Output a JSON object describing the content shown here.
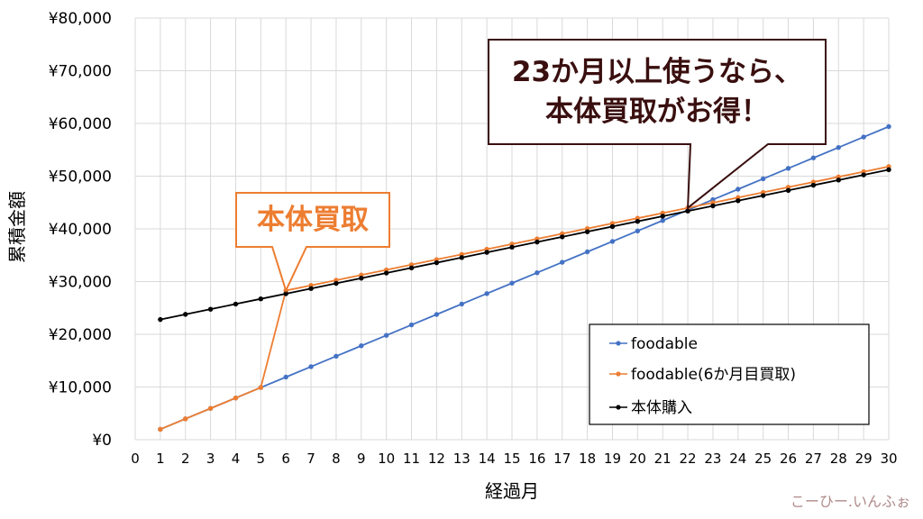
{
  "chart_data": {
    "type": "line",
    "xlabel": "経過月",
    "ylabel": "累積金額",
    "x_ticks": [
      0,
      1,
      2,
      3,
      4,
      5,
      6,
      7,
      8,
      9,
      10,
      11,
      12,
      13,
      14,
      15,
      16,
      17,
      18,
      19,
      20,
      21,
      22,
      23,
      24,
      25,
      26,
      27,
      28,
      29,
      30
    ],
    "xlim": [
      0,
      30
    ],
    "y_ticks": [
      "¥0",
      "¥10,000",
      "¥20,000",
      "¥30,000",
      "¥40,000",
      "¥50,000",
      "¥60,000",
      "¥70,000",
      "¥80,000"
    ],
    "ylim": [
      0,
      80000
    ],
    "grid": true,
    "legend_position": "bottom-right",
    "series": [
      {
        "name": "foodable",
        "color": "#4472c4",
        "x": [
          1,
          2,
          3,
          4,
          5,
          6,
          7,
          8,
          9,
          10,
          11,
          12,
          13,
          14,
          15,
          16,
          17,
          18,
          19,
          20,
          21,
          22,
          23,
          24,
          25,
          26,
          27,
          28,
          29,
          30
        ],
        "values": [
          1980,
          3960,
          5940,
          7920,
          9900,
          11880,
          13860,
          15840,
          17820,
          19800,
          21780,
          23760,
          25740,
          27720,
          29700,
          31680,
          33660,
          35640,
          37620,
          39600,
          41580,
          43560,
          45540,
          47520,
          49500,
          51480,
          53460,
          55440,
          57420,
          59400
        ]
      },
      {
        "name": "foodable(6か月目買取)",
        "color": "#ed7d31",
        "x": [
          1,
          2,
          3,
          4,
          5,
          6,
          7,
          8,
          9,
          10,
          11,
          12,
          13,
          14,
          15,
          16,
          17,
          18,
          19,
          20,
          21,
          22,
          23,
          24,
          25,
          26,
          27,
          28,
          29,
          30
        ],
        "values": [
          1980,
          3960,
          5940,
          7920,
          9900,
          28300,
          29280,
          30260,
          31240,
          32220,
          33200,
          34180,
          35160,
          36140,
          37120,
          38100,
          39080,
          40060,
          41040,
          42020,
          43000,
          43980,
          44960,
          45940,
          46920,
          47900,
          48880,
          49860,
          50840,
          51820
        ]
      },
      {
        "name": "本体購入",
        "color": "#000000",
        "x": [
          1,
          2,
          3,
          4,
          5,
          6,
          7,
          8,
          9,
          10,
          11,
          12,
          13,
          14,
          15,
          16,
          17,
          18,
          19,
          20,
          21,
          22,
          23,
          24,
          25,
          26,
          27,
          28,
          29,
          30
        ],
        "values": [
          22800,
          23780,
          24760,
          25740,
          26720,
          27700,
          28680,
          29660,
          30640,
          31620,
          32600,
          33580,
          34560,
          35540,
          36520,
          37500,
          38480,
          39460,
          40440,
          41420,
          42400,
          43380,
          44360,
          45340,
          46320,
          47300,
          48280,
          49260,
          50240,
          51220
        ]
      }
    ],
    "annotations": [
      {
        "text": "本体買取",
        "color": "#ed7d31",
        "points_to": {
          "x": 6,
          "y": 28300
        }
      },
      {
        "lines": [
          "23か月以上使うなら、",
          "本体買取がお得！"
        ],
        "color": "#3a0f0f",
        "points_to": {
          "x": 22,
          "y": 43980
        }
      }
    ]
  },
  "watermark": "こーひー.いんふぉ"
}
